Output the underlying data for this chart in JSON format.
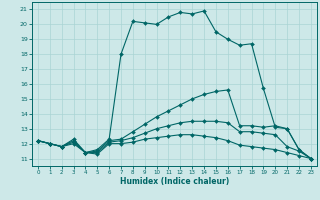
{
  "xlabel": "Humidex (Indice chaleur)",
  "bg_color": "#cde8e8",
  "line_color": "#006666",
  "grid_color": "#aad4d4",
  "ylim": [
    10.5,
    21.5
  ],
  "xlim": [
    -0.5,
    23.5
  ],
  "yticks": [
    11,
    12,
    13,
    14,
    15,
    16,
    17,
    18,
    19,
    20,
    21
  ],
  "xticks": [
    0,
    1,
    2,
    3,
    4,
    5,
    6,
    7,
    8,
    9,
    10,
    11,
    12,
    13,
    14,
    15,
    16,
    17,
    18,
    19,
    20,
    21,
    22,
    23
  ],
  "series": [
    {
      "x": [
        0,
        1,
        2,
        3,
        4,
        5,
        6,
        7,
        8,
        9,
        10,
        11,
        12,
        13,
        14,
        15,
        16,
        17,
        18,
        19,
        20,
        21,
        22,
        23
      ],
      "y": [
        12.2,
        12.0,
        11.8,
        12.3,
        11.4,
        11.6,
        12.3,
        18.0,
        20.2,
        20.1,
        20.0,
        20.5,
        20.8,
        20.7,
        20.9,
        19.5,
        19.0,
        18.6,
        18.7,
        15.7,
        13.1,
        13.0,
        11.6,
        11.0
      ]
    },
    {
      "x": [
        0,
        1,
        2,
        3,
        4,
        5,
        6,
        7,
        8,
        9,
        10,
        11,
        12,
        13,
        14,
        15,
        16,
        17,
        18,
        19,
        20,
        21,
        22,
        23
      ],
      "y": [
        12.2,
        12.0,
        11.8,
        12.2,
        11.4,
        11.5,
        12.2,
        12.3,
        12.8,
        13.3,
        13.8,
        14.2,
        14.6,
        15.0,
        15.3,
        15.5,
        15.6,
        13.2,
        13.2,
        13.1,
        13.2,
        13.0,
        11.6,
        11.0
      ]
    },
    {
      "x": [
        0,
        1,
        2,
        3,
        4,
        5,
        6,
        7,
        8,
        9,
        10,
        11,
        12,
        13,
        14,
        15,
        16,
        17,
        18,
        19,
        20,
        21,
        22,
        23
      ],
      "y": [
        12.2,
        12.0,
        11.8,
        12.1,
        11.4,
        11.4,
        12.1,
        12.2,
        12.4,
        12.7,
        13.0,
        13.2,
        13.4,
        13.5,
        13.5,
        13.5,
        13.4,
        12.8,
        12.8,
        12.7,
        12.6,
        11.8,
        11.5,
        11.0
      ]
    },
    {
      "x": [
        0,
        1,
        2,
        3,
        4,
        5,
        6,
        7,
        8,
        9,
        10,
        11,
        12,
        13,
        14,
        15,
        16,
        17,
        18,
        19,
        20,
        21,
        22,
        23
      ],
      "y": [
        12.2,
        12.0,
        11.8,
        12.0,
        11.4,
        11.3,
        12.0,
        12.0,
        12.1,
        12.3,
        12.4,
        12.5,
        12.6,
        12.6,
        12.5,
        12.4,
        12.2,
        11.9,
        11.8,
        11.7,
        11.6,
        11.4,
        11.2,
        11.0
      ]
    }
  ]
}
